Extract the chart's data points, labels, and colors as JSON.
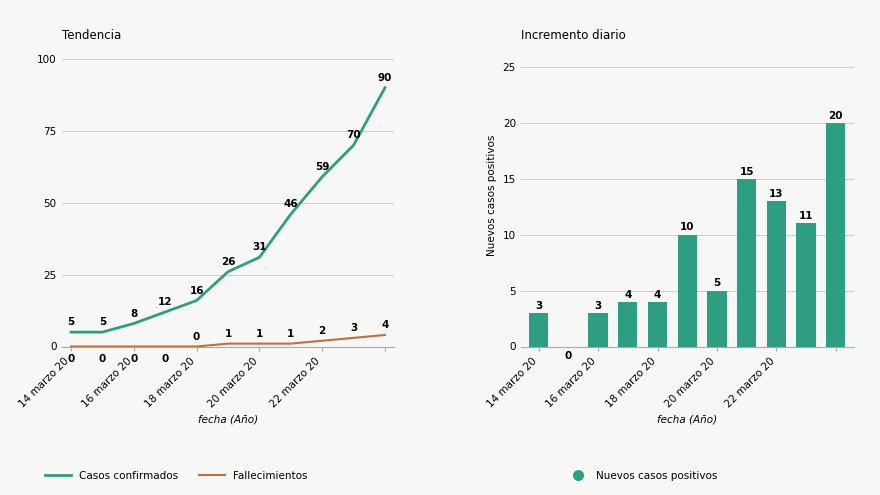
{
  "left_title": "Tendencia",
  "right_title": "Incremento diario",
  "xlabel": "fecha (Año)",
  "right_ylabel": "Nuevos casos positivos",
  "confirmed": [
    5,
    5,
    8,
    12,
    16,
    26,
    31,
    46,
    59,
    70,
    90
  ],
  "deaths": [
    0,
    0,
    0,
    0,
    0,
    1,
    1,
    1,
    2,
    3,
    4
  ],
  "x_ticks_line": [
    0,
    2,
    4,
    6,
    8,
    10
  ],
  "x_tick_labels_line": [
    "14 marzo 20",
    "16 marzo 20",
    "18 marzo 20",
    "20 marzo 20",
    "22 marzo 20",
    ""
  ],
  "bar_values": [
    3,
    0,
    3,
    4,
    4,
    10,
    5,
    15,
    13,
    11,
    20
  ],
  "bar_x_ticks": [
    0,
    2,
    4,
    6,
    8,
    10
  ],
  "bar_x_tick_labels": [
    "14 marzo 20",
    "16 marzo 20",
    "18 marzo 20",
    "20 marzo 20",
    "22 marzo 20",
    ""
  ],
  "line_color_confirmed": "#2e9e82",
  "line_color_deaths": "#c0713a",
  "bar_color": "#2e9e82",
  "legend_confirmed": "Casos confirmados",
  "legend_deaths": "Fallecimientos",
  "legend_bar": "Nuevos casos positivos",
  "ylim_left": [
    0,
    105
  ],
  "ylim_right": [
    0,
    27
  ],
  "yticks_left": [
    0,
    25,
    50,
    75,
    100
  ],
  "yticks_right": [
    0,
    5,
    10,
    15,
    20,
    25
  ],
  "background_color": "#f7f7f5",
  "grid_color": "#cccccc",
  "label_fontsize": 7.5,
  "title_fontsize": 8.5,
  "annot_fontsize": 7.5
}
